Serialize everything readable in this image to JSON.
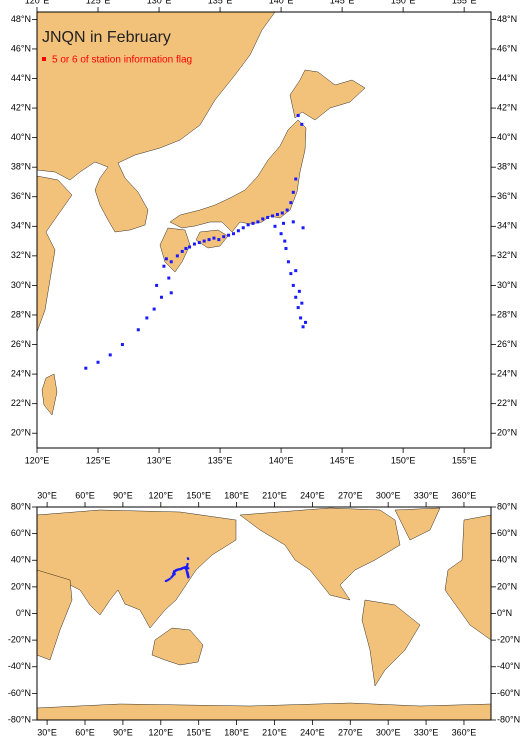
{
  "chart_data": [
    {
      "type": "scatter",
      "title": "JNQN in February",
      "legend_color": "#ff0000",
      "land_color": "#f2c27b",
      "xlim": [
        120,
        157.2
      ],
      "ylim": [
        19,
        48.5
      ],
      "xticks": [
        {
          "value": 120,
          "label": "120°E"
        },
        {
          "value": 125,
          "label": "125°E"
        },
        {
          "value": 130,
          "label": "130°E"
        },
        {
          "value": 135,
          "label": "135°E"
        },
        {
          "value": 140,
          "label": "140°E"
        },
        {
          "value": 145,
          "label": "145°E"
        },
        {
          "value": 150,
          "label": "150°E"
        },
        {
          "value": 155,
          "label": "155°E"
        }
      ],
      "yticks": [
        {
          "value": 20,
          "label": "20°N"
        },
        {
          "value": 22,
          "label": "22°N"
        },
        {
          "value": 24,
          "label": "24°N"
        },
        {
          "value": 26,
          "label": "26°N"
        },
        {
          "value": 28,
          "label": "28°N"
        },
        {
          "value": 30,
          "label": "30°N"
        },
        {
          "value": 32,
          "label": "32°N"
        },
        {
          "value": 34,
          "label": "34°N"
        },
        {
          "value": 36,
          "label": "36°N"
        },
        {
          "value": 38,
          "label": "38°N"
        },
        {
          "value": 40,
          "label": "40°N"
        },
        {
          "value": 42,
          "label": "42°N"
        },
        {
          "value": 44,
          "label": "44°N"
        },
        {
          "value": 46,
          "label": "46°N"
        },
        {
          "value": 48,
          "label": "48°N"
        }
      ],
      "series": [
        {
          "name": "5 or 6 of station information flag",
          "color": "#1a1aff",
          "x": [
            130.4,
            130.6,
            131.0,
            131.5,
            131.9,
            132.2,
            132.5,
            132.9,
            133.3,
            133.7,
            134.1,
            134.5,
            134.9,
            135.3,
            135.7,
            136.1,
            136.5,
            136.9,
            137.3,
            137.7,
            138.1,
            138.5,
            138.9,
            139.3,
            139.7,
            140.1,
            140.5,
            140.8,
            141.0,
            141.2,
            141.4,
            141.7,
            139.5,
            140.0,
            140.2,
            141.0,
            141.8,
            140.3,
            140.4,
            140.6,
            140.8,
            141.0,
            141.2,
            141.4,
            141.6,
            141.8,
            142.0,
            141.7,
            141.5,
            141.2,
            129.8,
            130.2,
            129.6,
            129.0,
            128.3,
            127.0,
            126.0,
            125.0,
            124.0,
            130.8,
            131.0
          ],
          "y": [
            31.3,
            31.8,
            31.6,
            32.0,
            32.3,
            32.5,
            32.6,
            32.8,
            32.9,
            33.0,
            33.1,
            33.2,
            33.1,
            33.3,
            33.4,
            33.5,
            33.7,
            33.9,
            34.1,
            34.2,
            34.3,
            34.5,
            34.6,
            34.7,
            34.8,
            34.9,
            35.1,
            35.6,
            36.3,
            37.2,
            41.5,
            40.9,
            34.0,
            33.5,
            34.2,
            34.3,
            33.9,
            33.0,
            32.5,
            31.6,
            30.8,
            30.0,
            29.2,
            28.5,
            27.8,
            27.2,
            27.5,
            28.8,
            29.6,
            31.0,
            30.0,
            29.2,
            28.4,
            27.8,
            27.0,
            26.0,
            25.3,
            24.8,
            24.4,
            30.5,
            29.5
          ]
        }
      ]
    },
    {
      "type": "map",
      "land_color": "#f2c27b",
      "xlim": [
        22,
        381.4
      ],
      "ylim": [
        -80,
        80
      ],
      "xticks": [
        {
          "value": 30,
          "label": "30°E"
        },
        {
          "value": 60,
          "label": "60°E"
        },
        {
          "value": 90,
          "label": "90°E"
        },
        {
          "value": 120,
          "label": "120°E"
        },
        {
          "value": 150,
          "label": "150°E"
        },
        {
          "value": 180,
          "label": "180°E"
        },
        {
          "value": 210,
          "label": "210°E"
        },
        {
          "value": 240,
          "label": "240°E"
        },
        {
          "value": 270,
          "label": "270°E"
        },
        {
          "value": 300,
          "label": "300°E"
        },
        {
          "value": 330,
          "label": "330°E"
        },
        {
          "value": 360,
          "label": "360°E"
        }
      ],
      "yticks": [
        {
          "value": -80,
          "label": "-80°N"
        },
        {
          "value": -60,
          "label": "-60°N"
        },
        {
          "value": -40,
          "label": "-40°N"
        },
        {
          "value": -20,
          "label": "-20°N"
        },
        {
          "value": 0,
          "label": "0°N"
        },
        {
          "value": 20,
          "label": "20°N"
        },
        {
          "value": 40,
          "label": "40°N"
        },
        {
          "value": 60,
          "label": "60°N"
        },
        {
          "value": 80,
          "label": "80°N"
        }
      ]
    }
  ]
}
